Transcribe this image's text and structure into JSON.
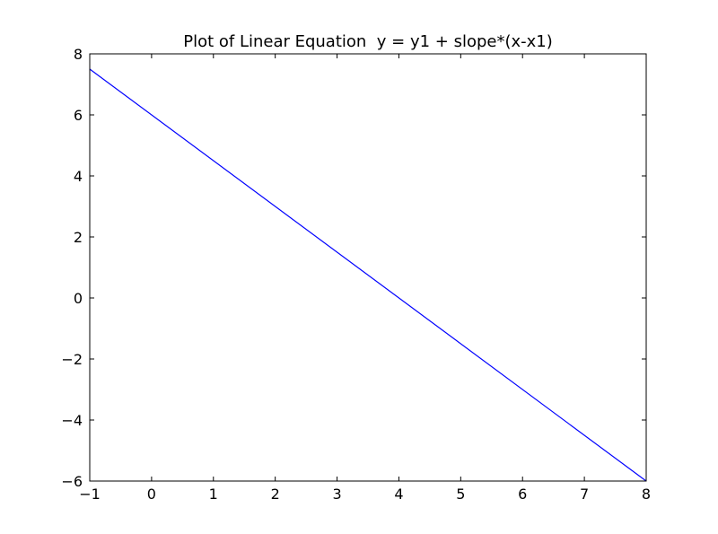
{
  "chart_data": {
    "type": "line",
    "title": "Plot of Linear Equation  y = y1 + slope*(x-x1)",
    "xlabel": "",
    "ylabel": "",
    "xlim": [
      -1,
      8
    ],
    "ylim": [
      -6,
      8
    ],
    "x_ticks": [
      -1,
      0,
      1,
      2,
      3,
      4,
      5,
      6,
      7,
      8
    ],
    "x_tick_labels": [
      "−1",
      "0",
      "1",
      "2",
      "3",
      "4",
      "5",
      "6",
      "7",
      "8"
    ],
    "y_ticks": [
      8,
      6,
      4,
      2,
      0,
      -2,
      -4,
      -6
    ],
    "y_tick_labels": [
      "8",
      "6",
      "4",
      "2",
      "0",
      "−2",
      "−4",
      "−6"
    ],
    "grid": false,
    "series": [
      {
        "x": [
          -1,
          8
        ],
        "y": [
          7.5,
          -6
        ],
        "color": "#0000ff"
      }
    ]
  }
}
